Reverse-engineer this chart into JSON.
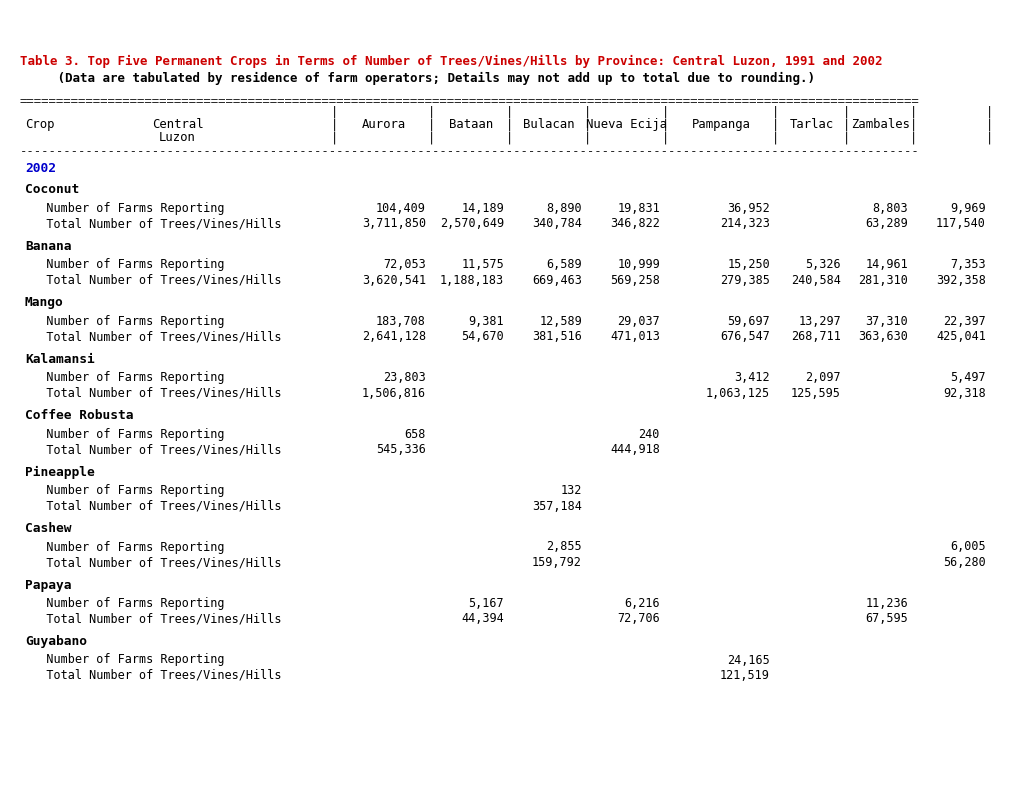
{
  "title_line1": "Table 3. Top Five Permanent Crops in Terms of Number of Trees/Vines/Hills by Province: Central Luzon, 1991 and 2002",
  "title_line2": "     (Data are tabulated by residence of farm operators; Details may not add up to total due to rounding.)",
  "title_color": "#cc0000",
  "title2_color": "#000000",
  "year_label": "2002",
  "year_color": "#0000cc",
  "bg_color": "#ffffff",
  "text_color": "#000000",
  "mono_font": "DejaVu Sans Mono",
  "title_fontsize": 9.0,
  "body_fontsize": 8.8,
  "sections": [
    {
      "crop": "Coconut",
      "rows": [
        {
          "label": "   Number of Farms Reporting         ",
          "values": [
            "104,409",
            "14,189",
            " 8,890",
            "19,831",
            " 36,952",
            "      ",
            " 8,803",
            "  9,969"
          ]
        },
        {
          "label": "   Total Number of Trees/Vines/Hills ",
          "values": [
            "3,711,850",
            "2,570,649",
            "340,784",
            "346,822",
            "214,323",
            "      ",
            "63,289",
            "117,540"
          ]
        }
      ]
    },
    {
      "crop": "Banana",
      "rows": [
        {
          "label": "   Number of Farms Reporting         ",
          "values": [
            " 72,053",
            "11,575",
            "6,589",
            "10,999",
            " 15,250",
            " 5,326",
            "14,961",
            " 7,353"
          ]
        },
        {
          "label": "   Total Number of Trees/Vines/Hills ",
          "values": [
            "3,620,541",
            "1,188,183",
            "669,463",
            "569,258",
            "279,385",
            "240,584",
            "281,310",
            "392,358"
          ]
        }
      ]
    },
    {
      "crop": "Mango",
      "rows": [
        {
          "label": "   Number of Farms Reporting         ",
          "values": [
            "183,708",
            " 9,381",
            "12,589",
            "29,037",
            " 59,697",
            "13,297",
            "37,310",
            "22,397"
          ]
        },
        {
          "label": "   Total Number of Trees/Vines/Hills ",
          "values": [
            "2,641,128",
            "   54,670",
            "381,516",
            "471,013",
            "676,547",
            "268,711",
            "363,630",
            "425,041"
          ]
        }
      ]
    },
    {
      "crop": "Kalamansi",
      "rows": [
        {
          "label": "   Number of Farms Reporting         ",
          "values": [
            " 23,803",
            "      ",
            "     ",
            "      ",
            "  3,412",
            " 2,097",
            "      ",
            " 5,497"
          ]
        },
        {
          "label": "   Total Number of Trees/Vines/Hills ",
          "values": [
            "1,506,816",
            "         ",
            "       ",
            "       ",
            "1,063,125",
            "125,595",
            "       ",
            "92,318"
          ]
        }
      ]
    },
    {
      "crop": "Coffee Robusta",
      "rows": [
        {
          "label": "   Number of Farms Reporting         ",
          "values": [
            "    658",
            "      ",
            "     ",
            "  240",
            "       ",
            "      ",
            "      ",
            "      "
          ]
        },
        {
          "label": "   Total Number of Trees/Vines/Hills ",
          "values": [
            "  545,336",
            "         ",
            "       ",
            "444,918",
            "       ",
            "       ",
            "       ",
            "       "
          ]
        }
      ]
    },
    {
      "crop": "Pineapple",
      "rows": [
        {
          "label": "   Number of Farms Reporting         ",
          "values": [
            "      ",
            "      ",
            "  132",
            "      ",
            "       ",
            "      ",
            "      ",
            "      "
          ]
        },
        {
          "label": "   Total Number of Trees/Vines/Hills ",
          "values": [
            "         ",
            "         ",
            "357,184",
            "       ",
            "       ",
            "       ",
            "       ",
            "       "
          ]
        }
      ]
    },
    {
      "crop": "Cashew",
      "rows": [
        {
          "label": "   Number of Farms Reporting         ",
          "values": [
            "      ",
            "      ",
            "2,855",
            "      ",
            "       ",
            "      ",
            "      ",
            " 6,005"
          ]
        },
        {
          "label": "   Total Number of Trees/Vines/Hills ",
          "values": [
            "         ",
            "         ",
            "159,792",
            "       ",
            "       ",
            "       ",
            "       ",
            "56,280"
          ]
        }
      ]
    },
    {
      "crop": "Papaya",
      "rows": [
        {
          "label": "   Number of Farms Reporting         ",
          "values": [
            "      ",
            " 5,167",
            "     ",
            " 6,216",
            "       ",
            "      ",
            "11,236",
            "      "
          ]
        },
        {
          "label": "   Total Number of Trees/Vines/Hills ",
          "values": [
            "         ",
            "  44,394",
            "       ",
            " 72,706",
            "       ",
            "       ",
            "67,595",
            "       "
          ]
        }
      ]
    },
    {
      "crop": "Guyabano",
      "rows": [
        {
          "label": "   Number of Farms Reporting         ",
          "values": [
            "      ",
            "      ",
            "     ",
            "      ",
            " 24,165",
            "      ",
            "      ",
            "      "
          ]
        },
        {
          "label": "   Total Number of Trees/Vines/Hills ",
          "values": [
            "         ",
            "         ",
            "       ",
            "       ",
            "121,519",
            "       ",
            "       ",
            "       "
          ]
        }
      ]
    }
  ]
}
